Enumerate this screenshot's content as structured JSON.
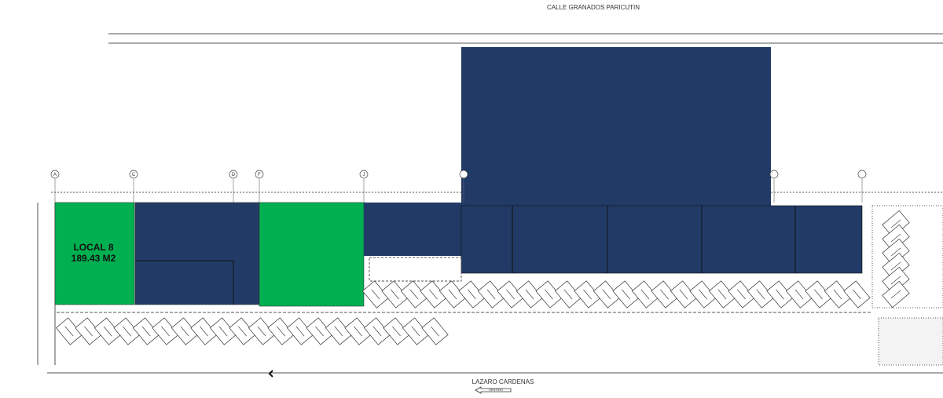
{
  "street_top": "CALLE GRANADOS PARICUTIN",
  "street_bottom": "LAZARO CARDENAS",
  "direction": "SENTIDO",
  "unit": {
    "name": "LOCAL 8",
    "area": "189.43 M2"
  },
  "grid_axes": [
    "A",
    "C",
    "D",
    "F",
    "J"
  ]
}
